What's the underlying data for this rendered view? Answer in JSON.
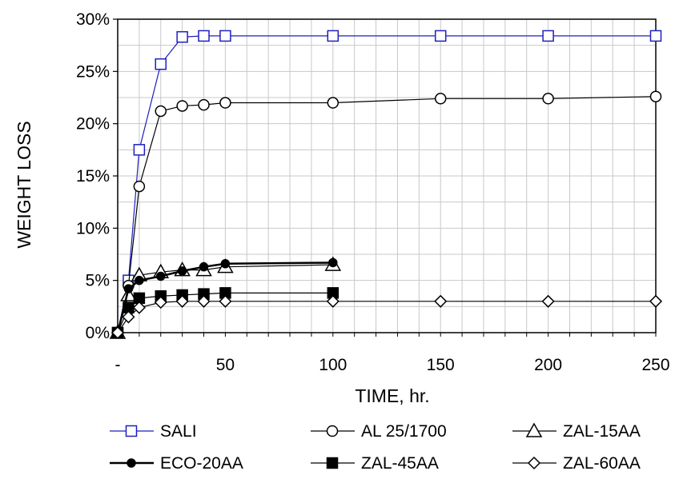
{
  "chart_data": {
    "type": "line",
    "title": "",
    "xlabel": "TIME, hr.",
    "ylabel": "WEIGHT LOSS",
    "xlim": [
      0,
      250
    ],
    "ylim": [
      0,
      30
    ],
    "x_ticks": [
      0,
      50,
      100,
      150,
      200,
      250
    ],
    "x_tick_labels": [
      "-",
      "50",
      "100",
      "150",
      "200",
      "250"
    ],
    "y_ticks": [
      0,
      5,
      10,
      15,
      20,
      25,
      30
    ],
    "y_tick_labels": [
      "0%",
      "5%",
      "10%",
      "15%",
      "20%",
      "25%",
      "30%"
    ],
    "grid": true,
    "legend_position": "bottom",
    "series": [
      {
        "name": "SALI",
        "marker": "square-open",
        "color": "#1f1fbf",
        "x": [
          0,
          5,
          10,
          20,
          30,
          40,
          50,
          100,
          150,
          200,
          250
        ],
        "y": [
          0,
          5.0,
          17.5,
          25.7,
          28.3,
          28.4,
          28.4,
          28.4,
          28.4,
          28.4,
          28.4
        ]
      },
      {
        "name": "AL 25/1700",
        "marker": "circle-open",
        "color": "#000000",
        "x": [
          0,
          5,
          10,
          20,
          30,
          40,
          50,
          100,
          150,
          200,
          250
        ],
        "y": [
          0,
          4.5,
          14.0,
          21.2,
          21.7,
          21.8,
          22.0,
          22.0,
          22.4,
          22.4,
          22.6
        ]
      },
      {
        "name": "ZAL-15AA",
        "marker": "triangle-open",
        "color": "#000000",
        "x": [
          0,
          5,
          10,
          20,
          30,
          40,
          50,
          100
        ],
        "y": [
          0,
          3.6,
          5.5,
          5.8,
          6.0,
          6.0,
          6.3,
          6.5
        ]
      },
      {
        "name": "ECO-20AA",
        "marker": "circle-filled",
        "color": "#000000",
        "x": [
          0,
          5,
          10,
          20,
          30,
          40,
          50,
          100
        ],
        "y": [
          0,
          4.2,
          5.0,
          5.4,
          5.9,
          6.3,
          6.6,
          6.7
        ]
      },
      {
        "name": "ZAL-45AA",
        "marker": "square-filled",
        "color": "#000000",
        "x": [
          0,
          5,
          10,
          20,
          30,
          40,
          50,
          100
        ],
        "y": [
          0,
          2.4,
          3.3,
          3.5,
          3.6,
          3.7,
          3.8,
          3.8
        ]
      },
      {
        "name": "ZAL-60AA",
        "marker": "diamond-open",
        "color": "#000000",
        "x": [
          0,
          5,
          10,
          20,
          30,
          40,
          50,
          100,
          150,
          200,
          250
        ],
        "y": [
          0,
          1.5,
          2.4,
          2.9,
          3.0,
          3.0,
          3.0,
          3.0,
          3.0,
          3.0,
          3.0
        ]
      }
    ]
  }
}
